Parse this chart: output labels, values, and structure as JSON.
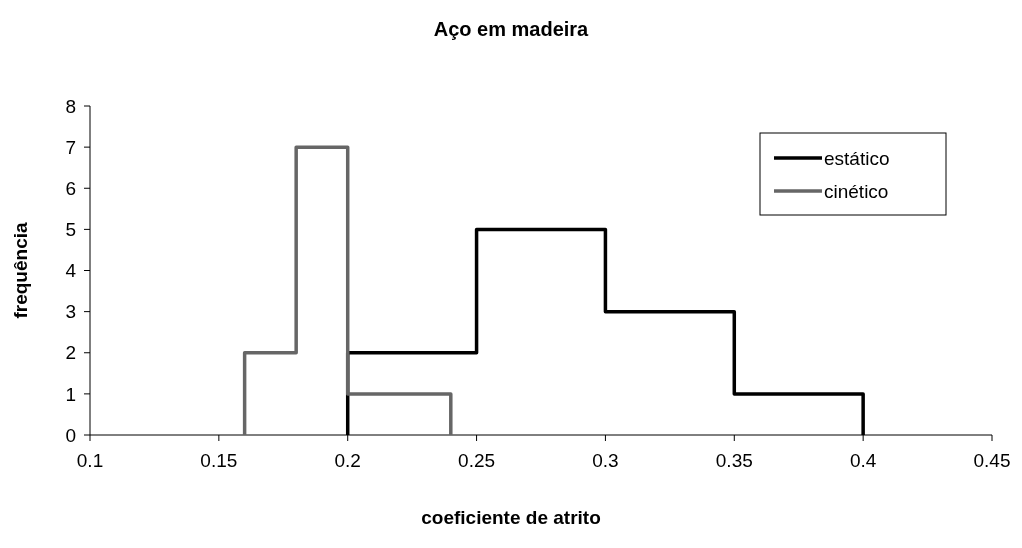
{
  "chart_data": {
    "type": "line",
    "title": "Aço em madeira",
    "xlabel": "coeficiente de atrito",
    "ylabel": "frequência",
    "series": [
      {
        "name": "estático",
        "color": "#000000",
        "x": [
          0.2,
          0.2,
          0.25,
          0.25,
          0.3,
          0.3,
          0.35,
          0.35,
          0.4,
          0.4
        ],
        "values": [
          0,
          2,
          2,
          5,
          5,
          3,
          3,
          1,
          1,
          0
        ]
      },
      {
        "name": "cinético",
        "color": "#666666",
        "x": [
          0.16,
          0.16,
          0.18,
          0.18,
          0.2,
          0.2,
          0.24,
          0.24
        ],
        "values": [
          0,
          2,
          2,
          7,
          7,
          1,
          1,
          0
        ]
      }
    ],
    "xlim": [
      0.1,
      0.45
    ],
    "xticks": [
      0.1,
      0.15,
      0.2,
      0.25,
      0.3,
      0.35,
      0.4,
      0.45
    ],
    "ylim": [
      0,
      8
    ],
    "yticks": [
      0,
      1,
      2,
      3,
      4,
      5,
      6,
      7,
      8
    ],
    "grid": false,
    "legend": "top right",
    "line_style": "solid",
    "marker": "none"
  }
}
